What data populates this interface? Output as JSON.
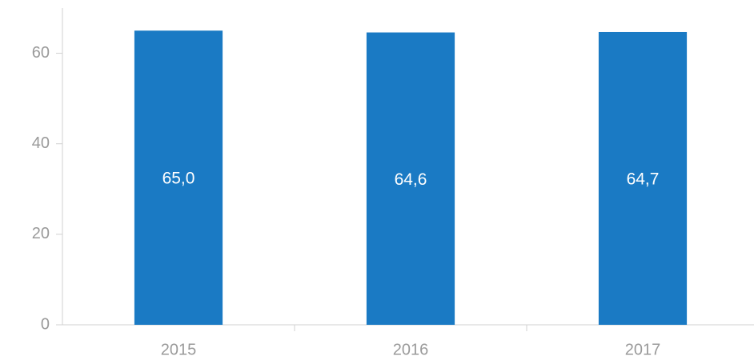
{
  "chart_data": {
    "type": "bar",
    "categories": [
      "2015",
      "2016",
      "2017"
    ],
    "values": [
      65.0,
      64.6,
      64.7
    ],
    "value_labels": [
      "65,0",
      "64,6",
      "64,7"
    ],
    "color": "#1a7ac4",
    "ylim": [
      0,
      70
    ],
    "yticks": [
      0,
      20,
      40,
      60
    ],
    "grid": false
  }
}
